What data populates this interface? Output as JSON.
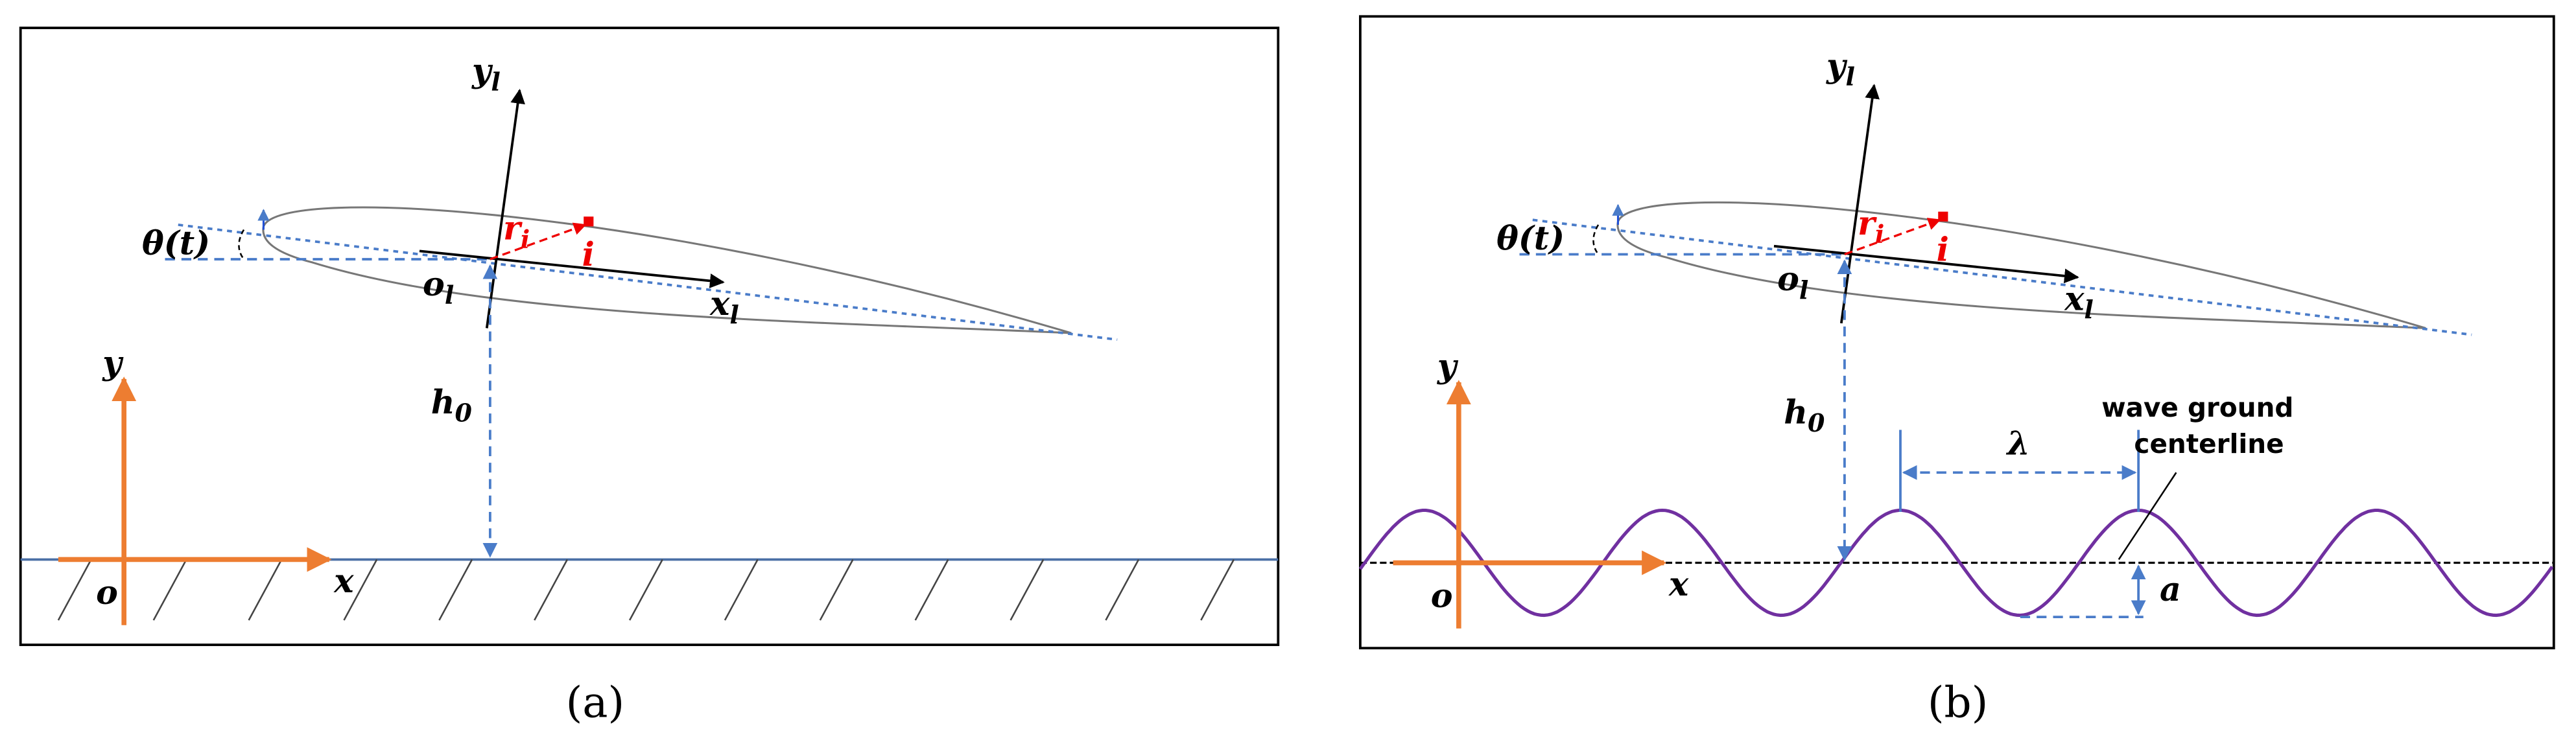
{
  "panels": [
    {
      "caption": "(a)",
      "theta": "θ(t)",
      "local_y": {
        "base": "y",
        "sub": "l"
      },
      "local_x": {
        "base": "x",
        "sub": "l"
      },
      "local_origin": {
        "base": "o",
        "sub": "l"
      },
      "r": {
        "base": "r",
        "sub": "i"
      },
      "point": "i",
      "height": {
        "base": "h",
        "sub": "0"
      },
      "global_y": "y",
      "global_x": "x",
      "global_origin": "o"
    },
    {
      "caption": "(b)",
      "theta": "θ(t)",
      "local_y": {
        "base": "y",
        "sub": "l"
      },
      "local_x": {
        "base": "x",
        "sub": "l"
      },
      "local_origin": {
        "base": "o",
        "sub": "l"
      },
      "r": {
        "base": "r",
        "sub": "i"
      },
      "point": "i",
      "height": {
        "base": "h",
        "sub": "0"
      },
      "global_y": "y",
      "global_x": "x",
      "global_origin": "o",
      "wavelength": "λ",
      "amplitude": "a",
      "centerline_label": [
        "wave ground",
        "centerline"
      ]
    }
  ]
}
